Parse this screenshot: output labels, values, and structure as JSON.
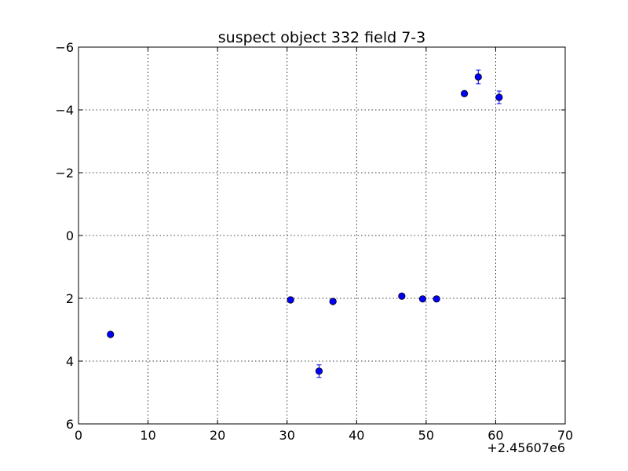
{
  "chart_data": {
    "type": "scatter",
    "title": "suspect object 332 field 7-3",
    "xlabel": "",
    "ylabel": "",
    "xlim": [
      0,
      70
    ],
    "ylim": [
      6,
      -6
    ],
    "y_inverted": true,
    "x_offset_label": "+2.45607e6",
    "x_ticks": [
      0,
      10,
      20,
      30,
      40,
      50,
      60,
      70
    ],
    "x_tick_labels": [
      "0",
      "10",
      "20",
      "30",
      "40",
      "50",
      "60",
      "70"
    ],
    "y_ticks": [
      -6,
      -4,
      -2,
      0,
      2,
      4,
      6
    ],
    "y_tick_labels": [
      "−6",
      "−4",
      "−2",
      "0",
      "2",
      "4",
      "6"
    ],
    "grid": true,
    "marker_color": "#0000ff",
    "series": [
      {
        "points": [
          {
            "x": 4.6,
            "y": 3.15,
            "err": 0.05
          },
          {
            "x": 30.5,
            "y": 2.05,
            "err": 0.05
          },
          {
            "x": 34.6,
            "y": 4.32,
            "err": 0.2
          },
          {
            "x": 36.6,
            "y": 2.1,
            "err": 0.05
          },
          {
            "x": 46.5,
            "y": 1.93,
            "err": 0.05
          },
          {
            "x": 49.5,
            "y": 2.02,
            "err": 0.05
          },
          {
            "x": 51.5,
            "y": 2.02,
            "err": 0.05
          },
          {
            "x": 55.5,
            "y": -4.52,
            "err": 0.08
          },
          {
            "x": 57.5,
            "y": -5.05,
            "err": 0.22
          },
          {
            "x": 60.5,
            "y": -4.4,
            "err": 0.2
          }
        ]
      }
    ]
  }
}
